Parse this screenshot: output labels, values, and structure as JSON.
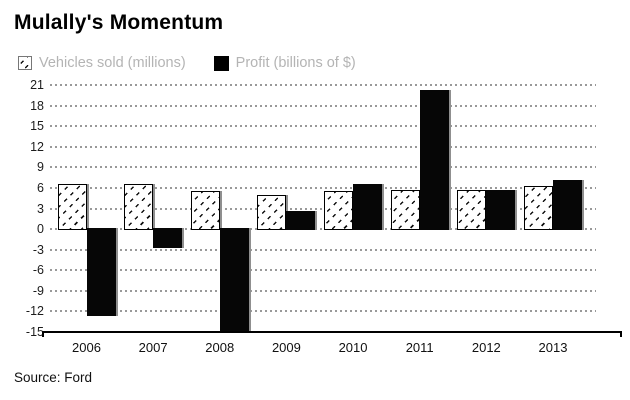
{
  "header": {
    "title": "Mulally's Momentum"
  },
  "source": {
    "label": "Source: Ford"
  },
  "colors": {
    "profit_bar": "#060606",
    "hatch_line": "#111111",
    "bar_right_shadow": "#8f8f8f",
    "gridline": "#999999",
    "legend_text": "#b4b4b4",
    "title_text": "#000000"
  },
  "icons": {
    "vehicles_swatch": "hatched-square-icon",
    "profit_swatch": "black-square-icon"
  },
  "chart_data": {
    "type": "bar",
    "title": "Mulally's Momentum",
    "subtitle": "",
    "xlabel": "",
    "ylabel": "",
    "categories": [
      "2006",
      "2007",
      "2008",
      "2009",
      "2010",
      "2011",
      "2012",
      "2013"
    ],
    "series": [
      {
        "name": "Vehicles sold (millions)",
        "style": "hatched",
        "values": [
          6.6,
          6.6,
          5.5,
          4.9,
          5.5,
          5.7,
          5.7,
          6.3
        ]
      },
      {
        "name": "Profit (billions of $)",
        "style": "solid-black",
        "values": [
          -12.6,
          -2.7,
          -14.8,
          2.7,
          6.6,
          20.2,
          5.7,
          7.2
        ]
      }
    ],
    "yticks": [
      21,
      18,
      15,
      12,
      9,
      6,
      3,
      0,
      -3,
      -6,
      -9,
      -12,
      -15
    ],
    "ylim": [
      -15,
      21
    ],
    "grid": "dotted-horizontal",
    "legend_position": "top-left",
    "annotation": "Source: Ford"
  }
}
